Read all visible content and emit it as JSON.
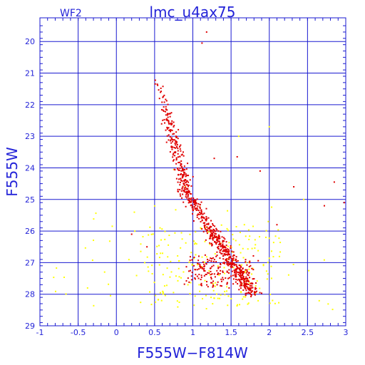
{
  "chart_data": {
    "type": "scatter",
    "title": "lmc_u4ax75",
    "chip_label": "WF2",
    "xlabel": "F555W−F814W",
    "ylabel": "F555W",
    "xlim": [
      -1,
      3
    ],
    "ylim": [
      29,
      19.25
    ],
    "y_inverted": true,
    "x_ticks": [
      "-1",
      "-0.5",
      "0",
      "0.5",
      "1",
      "1.5",
      "2",
      "2.5",
      "3"
    ],
    "y_ticks": [
      "20",
      "21",
      "22",
      "23",
      "24",
      "25",
      "26",
      "27",
      "28",
      "29"
    ],
    "grid": true,
    "colors": {
      "frame": "#1a1ad0",
      "accent": "#2323d8",
      "primary": "#e00000",
      "secondary": "#ffff00"
    },
    "series": [
      {
        "color": "#e00000",
        "points": []
      },
      {
        "color": "#ffff00",
        "points": []
      }
    ]
  }
}
